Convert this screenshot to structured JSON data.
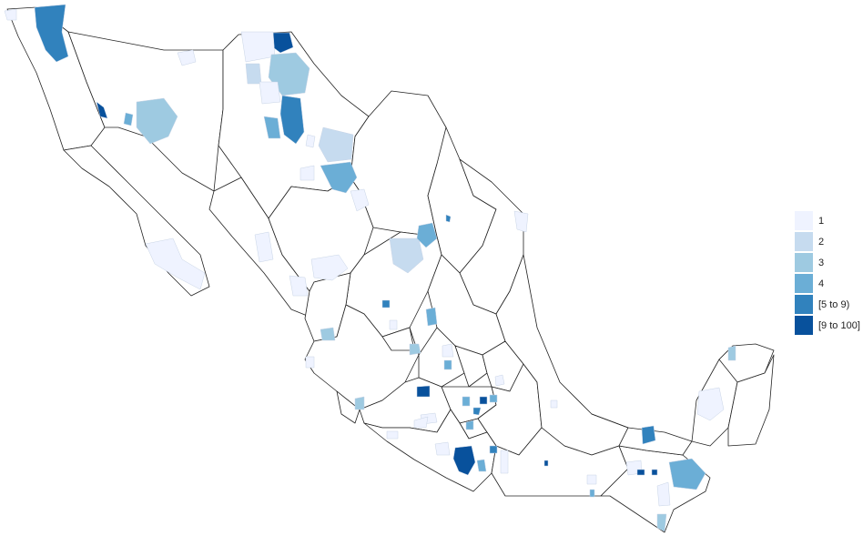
{
  "legend": {
    "items": [
      {
        "label": "1",
        "color": "#eff3ff"
      },
      {
        "label": "2",
        "color": "#c6dbef"
      },
      {
        "label": "3",
        "color": "#9ecae1"
      },
      {
        "label": "4",
        "color": "#6baed6"
      },
      {
        "label": "[5 to 9)",
        "color": "#3182bd"
      },
      {
        "label": "[9 to 100]",
        "color": "#08519c"
      }
    ]
  },
  "map": {
    "region": "Mexico",
    "value_classes": [
      "1",
      "2",
      "3",
      "4",
      "[5 to 9)",
      "[9 to 100]"
    ]
  }
}
